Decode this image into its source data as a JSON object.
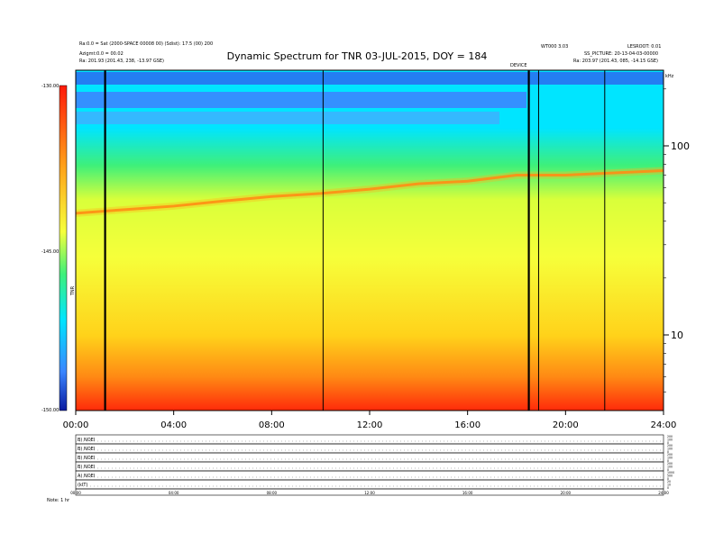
{
  "header": {
    "title": "Dynamic Spectrum for TNR 03-JUL-2015, DOY = 184",
    "left_lines": [
      "Ra:0.0 = Sat (2000-SPACE 00008 00) (Sdist): 17.5 (00) 200",
      "Azigmt:0.0 = 00.02",
      "Ra:       201.93 (201.43, 238, -13.97 GSE)"
    ],
    "right_lines": [
      "LESROOT: 0.01",
      "SS_PICTURE: 20-13-04-03-00000",
      "Ra:       203.97 (201.43, 085, -14.15 GSE)"
    ],
    "mid_right_label": "WT000 3.03",
    "devise_label": "DEVICE",
    "right_corner": "kHz"
  },
  "colorbar": {
    "top_label": "-130.00",
    "mid_label": "-145.00",
    "bottom_label": "-150.00",
    "unit_label": "TNR"
  },
  "chart_data": {
    "type": "heatmap",
    "title": "Dynamic Spectrum for TNR 03-JUL-2015, DOY = 184",
    "x_ticks": [
      "00:00",
      "04:00",
      "08:00",
      "12:00",
      "16:00",
      "20:00",
      "24:00"
    ],
    "xlim_hours": [
      0,
      24
    ],
    "y_scale": "log",
    "y_ticks": [
      10,
      100
    ],
    "y_unit": "kHz",
    "colorbar_range": [
      -150,
      -130
    ],
    "plasma_line_khz": [
      [
        0,
        44
      ],
      [
        2,
        46
      ],
      [
        4,
        48
      ],
      [
        6,
        51
      ],
      [
        8,
        54
      ],
      [
        10,
        56
      ],
      [
        12,
        59
      ],
      [
        14,
        63
      ],
      [
        16,
        65
      ],
      [
        18,
        70
      ],
      [
        20,
        70
      ],
      [
        22,
        72
      ],
      [
        24,
        74
      ]
    ],
    "gaps_hours": [
      1.2,
      10.1,
      18.5,
      18.9,
      21.6
    ],
    "colors": {
      "deep_blue": "#1a3dcc",
      "blue": "#3a86ff",
      "cyan": "#00e5ff",
      "green": "#3ef07a",
      "yellow": "#f6ff3a",
      "orange": "#ffa21a",
      "red": "#ff2a0a"
    }
  },
  "panels": {
    "labels": [
      "B) NOEI",
      "B) NOEI",
      "B) NOEI",
      "B) NOEI",
      "A) NOEI",
      "(kIT)"
    ],
    "right_values": [
      [
        "200",
        "100",
        "0"
      ],
      [
        "200",
        "100",
        "0"
      ],
      [
        "200",
        "100",
        "0"
      ],
      [
        "200",
        "100",
        "0"
      ],
      [
        "1000",
        "500",
        "0"
      ],
      [
        "20",
        "10",
        "0"
      ]
    ],
    "bottom_label": "Note: 1 hr",
    "x_ticks": [
      "00:00",
      "04:00",
      "08:00",
      "12:00",
      "16:00",
      "20:00",
      "24:00"
    ]
  }
}
